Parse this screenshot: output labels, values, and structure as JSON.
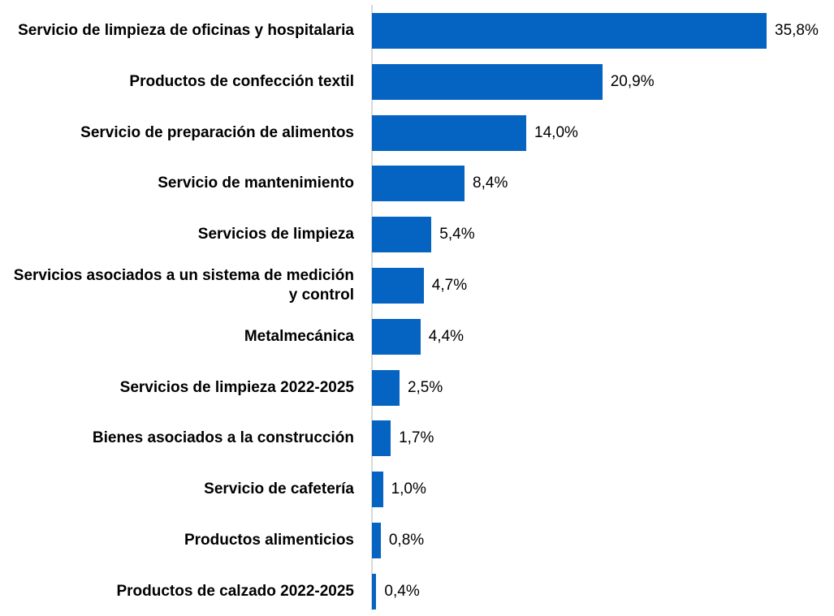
{
  "chart_data": {
    "type": "bar",
    "orientation": "horizontal",
    "categories": [
      "Servicio de limpieza de oficinas y hospitalaria",
      "Productos de confección textil",
      "Servicio de preparación de alimentos",
      "Servicio de mantenimiento",
      "Servicios de limpieza",
      "Servicios asociados a un sistema de medición y control",
      "Metalmecánica",
      "Servicios de limpieza 2022-2025",
      "Bienes asociados a la construcción",
      "Servicio de cafetería",
      "Productos alimenticios",
      "Productos de calzado 2022-2025"
    ],
    "values": [
      35.8,
      20.9,
      14.0,
      8.4,
      5.4,
      4.7,
      4.4,
      2.5,
      1.7,
      1.0,
      0.8,
      0.4
    ],
    "value_labels": [
      "35,8%",
      "20,9%",
      "14,0%",
      "8,4%",
      "5,4%",
      "4,7%",
      "4,4%",
      "2,5%",
      "1,7%",
      "1,0%",
      "0,8%",
      "0,4%"
    ],
    "color": "#0563c1"
  }
}
